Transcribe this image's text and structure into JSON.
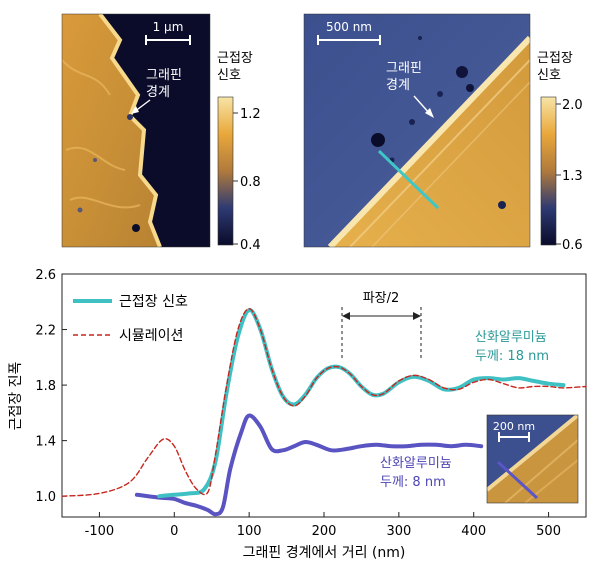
{
  "panel_a": {
    "scale_label": "1 µm",
    "annotation": [
      "그래핀",
      "경계"
    ],
    "colorbar": {
      "title": [
        "근접장",
        "신호"
      ],
      "ticks": [
        "1.2",
        "0.8",
        "0.4"
      ],
      "colors": [
        "#f7e4a6",
        "#e9a83b",
        "#b07a3c",
        "#2e3a72",
        "#0a0b2a"
      ]
    }
  },
  "panel_b": {
    "scale_label": "500 nm",
    "annotation": [
      "그래핀",
      "경계"
    ],
    "colorbar": {
      "title": [
        "근접장",
        "신호"
      ],
      "ticks": [
        "2.0",
        "1.3",
        "0.6"
      ],
      "colors": [
        "#f7e4a6",
        "#e9a83b",
        "#b07a3c",
        "#2e3a72",
        "#0a0b2a"
      ]
    },
    "linecut_color": "#3fc6c6"
  },
  "inset": {
    "scale_label": "200 nm",
    "linecut_color": "#5b55c8"
  },
  "chart_data": {
    "type": "line",
    "xlabel": "그래핀 경계에서 거리 (nm)",
    "ylabel": "근접장 진폭",
    "xlim": [
      -150,
      550
    ],
    "ylim": [
      0.85,
      2.6
    ],
    "xticks": [
      -100,
      0,
      100,
      200,
      300,
      400,
      500
    ],
    "yticks": [
      "1.0",
      "1.4",
      "1.8",
      "2.2",
      "2.6"
    ],
    "legend": {
      "position": "top-left",
      "items": [
        "근접장 신호",
        "시뮬레이션"
      ]
    },
    "series": [
      {
        "name": "근접장 신호",
        "color": "#3fc1c4",
        "style": "solid",
        "x": [
          -20,
          0,
          20,
          40,
          55,
          70,
          85,
          100,
          115,
          130,
          145,
          160,
          175,
          190,
          205,
          220,
          235,
          250,
          265,
          280,
          300,
          320,
          340,
          360,
          380,
          400,
          420,
          440,
          460,
          480,
          500,
          520
        ],
        "y": [
          1.0,
          1.01,
          1.02,
          1.05,
          1.25,
          1.75,
          2.15,
          2.34,
          2.2,
          1.92,
          1.72,
          1.66,
          1.73,
          1.85,
          1.92,
          1.93,
          1.88,
          1.79,
          1.73,
          1.74,
          1.82,
          1.86,
          1.83,
          1.77,
          1.78,
          1.84,
          1.85,
          1.84,
          1.85,
          1.83,
          1.81,
          1.8
        ]
      },
      {
        "name": "시뮬레이션",
        "color": "#c8261f",
        "style": "dashed",
        "x": [
          -150,
          -100,
          -60,
          -35,
          -15,
          0,
          15,
          30,
          45,
          55,
          70,
          85,
          100,
          115,
          130,
          145,
          160,
          175,
          190,
          205,
          220,
          235,
          250,
          265,
          280,
          300,
          320,
          340,
          360,
          380,
          400,
          420,
          440,
          460,
          480,
          500,
          520,
          550
        ],
        "y": [
          1.0,
          1.02,
          1.1,
          1.28,
          1.41,
          1.36,
          1.18,
          1.05,
          1.03,
          1.3,
          1.8,
          2.2,
          2.35,
          2.2,
          1.92,
          1.72,
          1.65,
          1.72,
          1.85,
          1.92,
          1.93,
          1.88,
          1.79,
          1.73,
          1.74,
          1.83,
          1.87,
          1.84,
          1.78,
          1.77,
          1.82,
          1.84,
          1.81,
          1.78,
          1.79,
          1.79,
          1.78,
          1.79
        ]
      },
      {
        "name": "",
        "color": "#5a53c2",
        "style": "solid",
        "x": [
          -50,
          -20,
          0,
          15,
          30,
          45,
          55,
          65,
          75,
          90,
          100,
          115,
          130,
          145,
          160,
          175,
          190,
          210,
          230,
          250,
          270,
          290,
          310,
          330,
          350,
          370,
          390,
          410
        ],
        "y": [
          1.01,
          0.99,
          0.98,
          0.95,
          0.93,
          0.9,
          0.87,
          0.92,
          1.2,
          1.47,
          1.58,
          1.5,
          1.34,
          1.33,
          1.36,
          1.39,
          1.37,
          1.33,
          1.34,
          1.36,
          1.37,
          1.36,
          1.36,
          1.37,
          1.37,
          1.36,
          1.37,
          1.36
        ]
      }
    ],
    "annotations": {
      "wavelength": "파장/2",
      "oxide_18_line1": "산화알루미늄",
      "oxide_18_line2": "두께: 18 nm",
      "oxide_8_line1": "산화알루미늄",
      "oxide_8_line2": "두께: 8 nm"
    }
  }
}
